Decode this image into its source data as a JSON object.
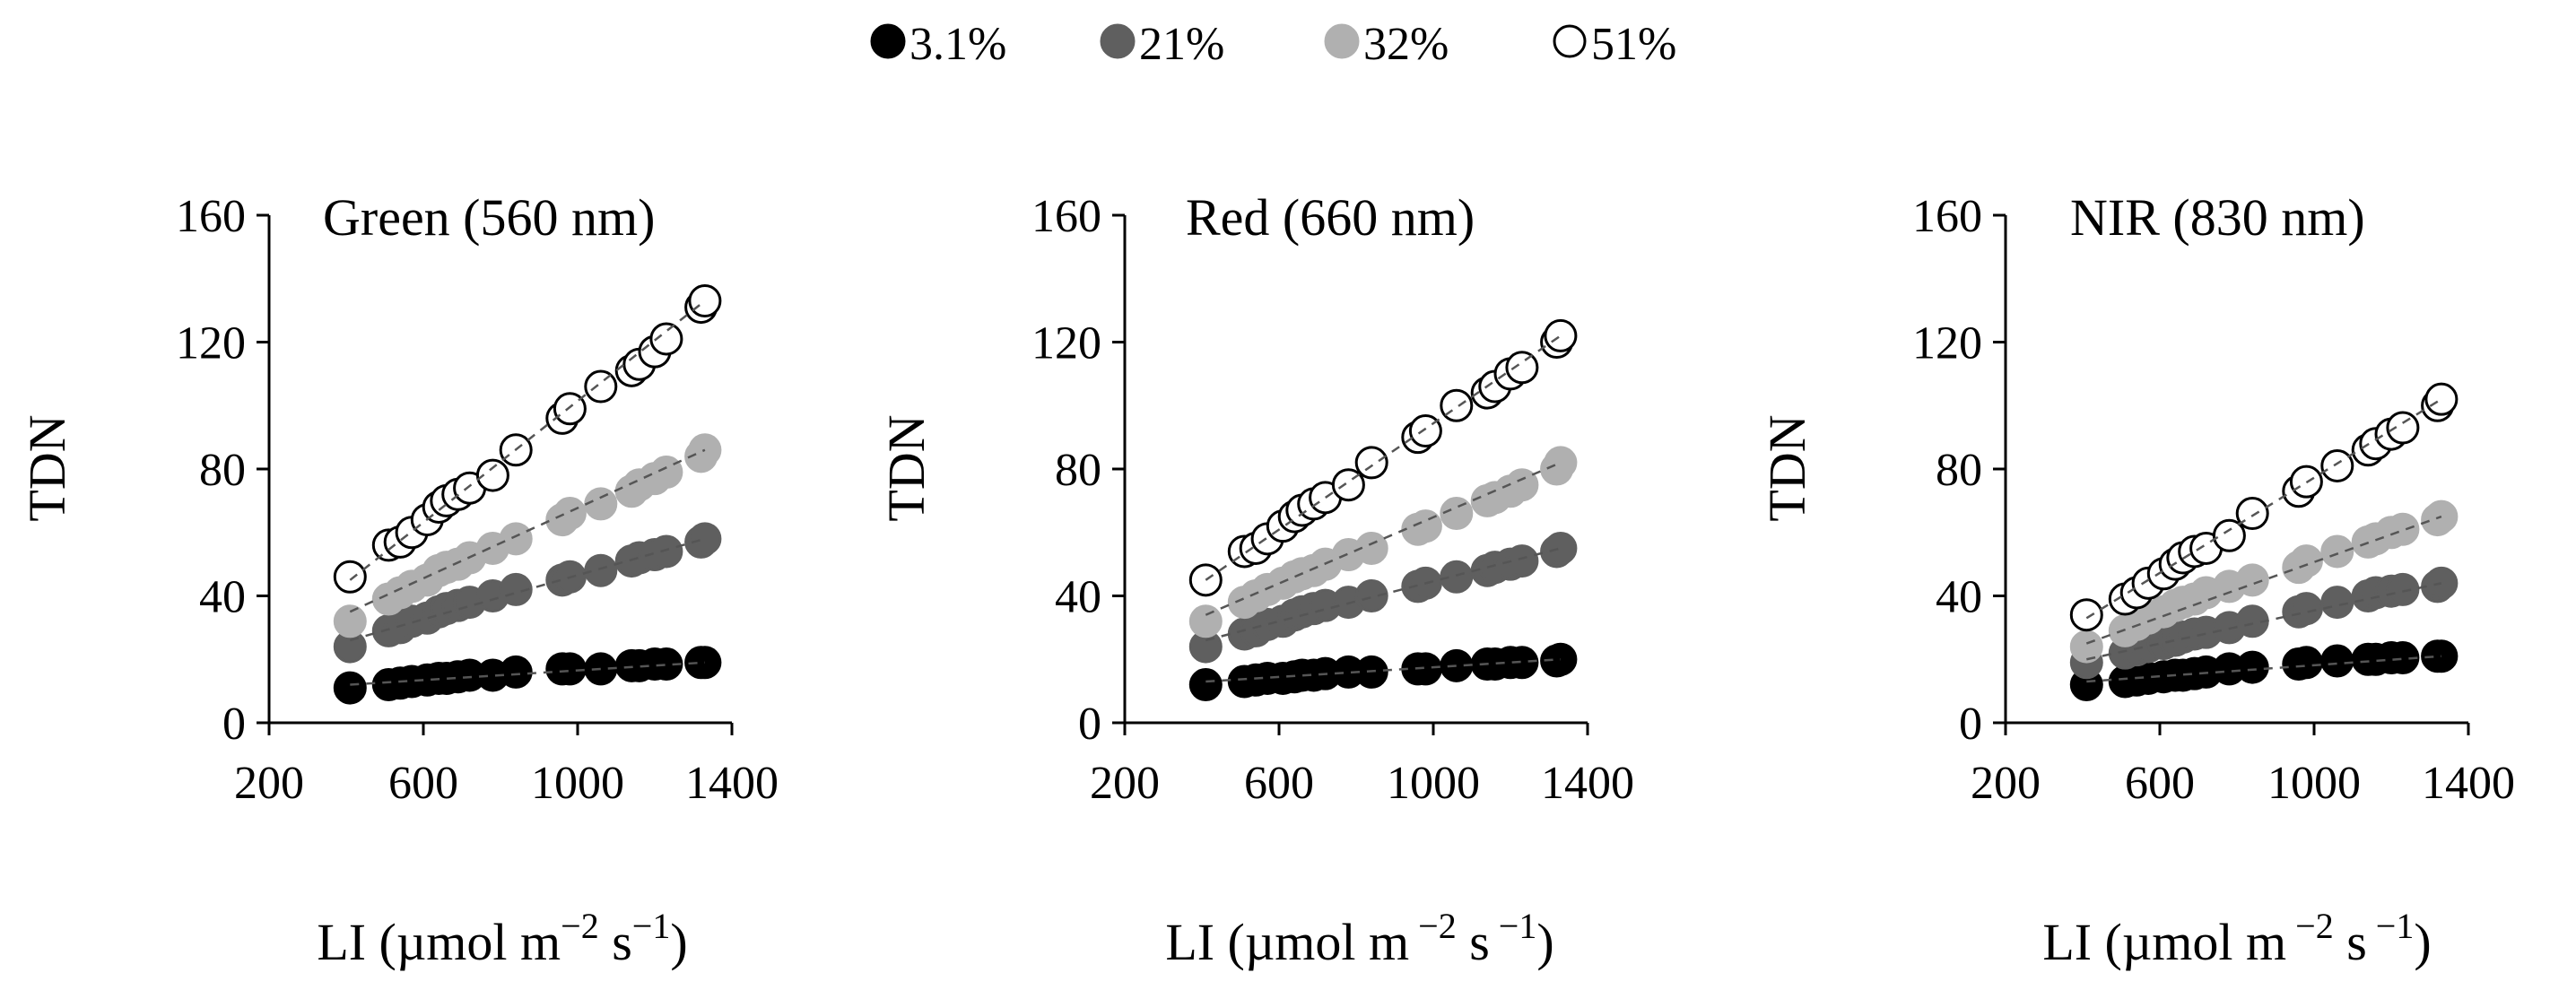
{
  "chart_data": {
    "type": "scatter",
    "legend": [
      {
        "name": "3.1%",
        "fill": "#000000",
        "stroke": "#000000"
      },
      {
        "name": "21%",
        "fill": "#5f5f5f",
        "stroke": "#5f5f5f"
      },
      {
        "name": "32%",
        "fill": "#b0b0b0",
        "stroke": "#b0b0b0"
      },
      {
        "name": "51%",
        "fill": "#ffffff",
        "stroke": "#000000"
      }
    ],
    "x": [
      410,
      510,
      540,
      570,
      610,
      640,
      660,
      690,
      720,
      780,
      840,
      960,
      980,
      1060,
      1140,
      1160,
      1200,
      1230,
      1320,
      1330
    ],
    "panels": [
      {
        "title": "Green (560 nm)",
        "xlabel": "LI (µmol m",
        "xlabel_exp1": "−2",
        "xlabel_mid": " s",
        "xlabel_exp2": "−1",
        "xlabel_end": ")",
        "ylabel": "TDN",
        "xlim": [
          200,
          1400
        ],
        "ylim": [
          0,
          160
        ],
        "xticks": [
          "200",
          "600",
          "1000",
          "1400"
        ],
        "yticks": [
          "0",
          "40",
          "80",
          "120",
          "160"
        ],
        "series": [
          {
            "name": "3.1%",
            "values": [
              11,
              12,
              12.5,
              13,
              13.5,
              14,
              14,
              14.5,
              15,
              15,
              16,
              17,
              17,
              17,
              18,
              18,
              18.5,
              18.5,
              19,
              19
            ]
          },
          {
            "name": "21%",
            "values": [
              24,
              29,
              30,
              32,
              33,
              35,
              36,
              37,
              38,
              40,
              42,
              45,
              46,
              48,
              51,
              52,
              53,
              54,
              57,
              58
            ]
          },
          {
            "name": "32%",
            "values": [
              32,
              39,
              41,
              43,
              45,
              48,
              49,
              50,
              52,
              55,
              58,
              64,
              66,
              69,
              73,
              75,
              77,
              79,
              84,
              86
            ]
          },
          {
            "name": "51%",
            "values": [
              46,
              56,
              57,
              60,
              64,
              68,
              70,
              72,
              74,
              78,
              86,
              96,
              99,
              106,
              111,
              113,
              117,
              121,
              131,
              133
            ]
          }
        ],
        "trend": [
          {
            "name": "3.1%",
            "start": [
              410,
              12
            ],
            "end": [
              1330,
              19
            ]
          },
          {
            "name": "21%",
            "start": [
              410,
              26
            ],
            "end": [
              1330,
              58
            ]
          },
          {
            "name": "32%",
            "start": [
              410,
              35
            ],
            "end": [
              1330,
              86
            ]
          },
          {
            "name": "51%",
            "start": [
              410,
              45
            ],
            "end": [
              1330,
              133
            ]
          }
        ]
      },
      {
        "title": "Red (660 nm)",
        "xlabel": "LI (µmol m",
        "xlabel_exp1": " −2",
        "xlabel_mid": " s",
        "xlabel_exp2": " −1",
        "xlabel_end": ")",
        "ylabel": "TDN",
        "xlim": [
          200,
          1400
        ],
        "ylim": [
          0,
          160
        ],
        "xticks": [
          "200",
          "600",
          "1000",
          "1400"
        ],
        "yticks": [
          "0",
          "40",
          "80",
          "120",
          "160"
        ],
        "series": [
          {
            "name": "3.1%",
            "values": [
              12,
              13,
              13.5,
              14,
              14,
              14.5,
              15,
              15,
              15.5,
              16,
              16,
              17,
              17,
              18,
              18.5,
              18.5,
              19,
              19,
              19.5,
              20
            ]
          },
          {
            "name": "21%",
            "values": [
              24,
              28,
              29,
              31,
              32,
              34,
              35,
              36,
              37,
              38,
              40,
              43,
              44,
              46,
              48,
              49,
              50,
              51,
              54,
              55
            ]
          },
          {
            "name": "32%",
            "values": [
              32,
              38,
              40,
              42,
              44,
              46,
              47,
              48,
              50,
              53,
              55,
              61,
              62,
              66,
              70,
              71,
              73,
              75,
              80,
              82
            ]
          },
          {
            "name": "51%",
            "values": [
              45,
              54,
              55,
              58,
              62,
              65,
              67,
              69,
              71,
              75,
              82,
              90,
              92,
              100,
              104,
              106,
              110,
              112,
              120,
              122
            ]
          }
        ],
        "trend": [
          {
            "name": "3.1%",
            "start": [
              410,
              13
            ],
            "end": [
              1330,
              20
            ]
          },
          {
            "name": "21%",
            "start": [
              410,
              26
            ],
            "end": [
              1330,
              55
            ]
          },
          {
            "name": "32%",
            "start": [
              410,
              34
            ],
            "end": [
              1330,
              82
            ]
          },
          {
            "name": "51%",
            "start": [
              410,
              45
            ],
            "end": [
              1330,
              122
            ]
          }
        ]
      },
      {
        "title": "NIR (830 nm)",
        "xlabel": "LI (µmol m",
        "xlabel_exp1": " −2",
        "xlabel_mid": " s",
        "xlabel_exp2": " −1",
        "xlabel_end": ")",
        "ylabel": "TDN",
        "xlim": [
          200,
          1400
        ],
        "ylim": [
          0,
          160
        ],
        "xticks": [
          "200",
          "600",
          "1000",
          "1400"
        ],
        "yticks": [
          "0",
          "40",
          "80",
          "120",
          "160"
        ],
        "series": [
          {
            "name": "3.1%",
            "values": [
              12,
              13,
              13.5,
              14,
              14.5,
              15,
              15,
              15.5,
              16,
              17,
              17.5,
              18.5,
              19,
              19.5,
              20,
              20,
              20.5,
              20.5,
              21,
              21
            ]
          },
          {
            "name": "21%",
            "values": [
              19,
              22,
              23,
              24,
              25,
              26,
              27,
              28,
              28.5,
              30,
              32,
              35,
              36,
              38,
              40,
              41,
              41.5,
              42,
              43,
              44
            ]
          },
          {
            "name": "32%",
            "values": [
              24,
              29,
              31,
              33,
              35,
              37,
              38,
              39,
              41,
              43,
              45,
              49,
              51,
              54,
              57,
              58,
              60,
              61,
              64,
              65
            ]
          },
          {
            "name": "51%",
            "values": [
              34,
              39,
              41,
              44,
              47,
              50,
              52,
              54,
              55,
              59,
              66,
              73,
              76,
              81,
              86,
              88,
              91,
              93,
              100,
              102
            ]
          }
        ],
        "trend": [
          {
            "name": "3.1%",
            "start": [
              410,
              13
            ],
            "end": [
              1330,
              21
            ]
          },
          {
            "name": "21%",
            "start": [
              410,
              20
            ],
            "end": [
              1330,
              44
            ]
          },
          {
            "name": "32%",
            "start": [
              410,
              25
            ],
            "end": [
              1330,
              65
            ]
          },
          {
            "name": "51%",
            "start": [
              410,
              33
            ],
            "end": [
              1330,
              102
            ]
          }
        ]
      }
    ]
  }
}
